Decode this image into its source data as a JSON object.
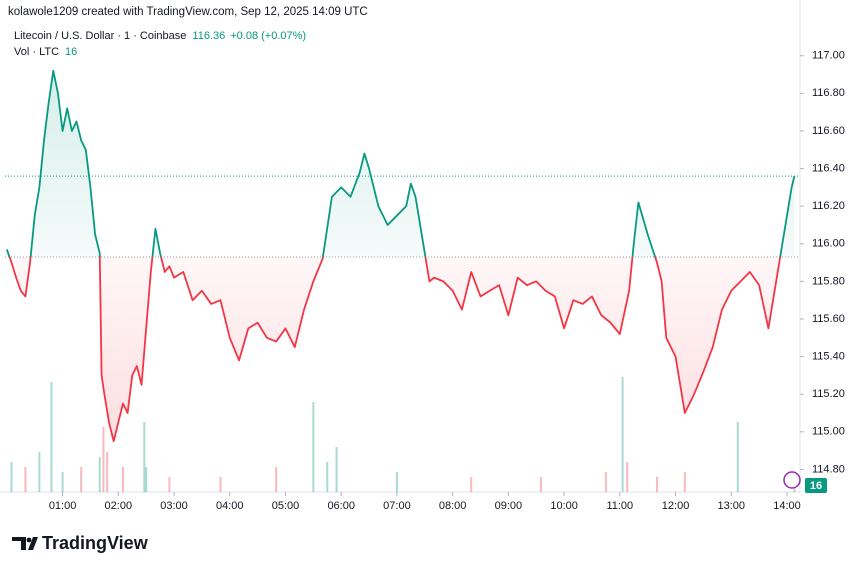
{
  "header": "kolawole1209 created with TradingView.com, Sep 12, 2025 14:09 UTC",
  "footer_brand": "TradingView",
  "chart_data": {
    "type": "line",
    "symbol": "Litecoin / U.S. Dollar · 1 · Coinbase",
    "last_price": "116.36",
    "change": "+0.08 (+0.07%)",
    "volume_label": "Vol · LTC",
    "volume_last": "16",
    "baseline": 115.93,
    "color_up": "#089981",
    "color_down": "#f23645",
    "x": [
      0,
      5,
      10,
      15,
      20,
      25,
      30,
      35,
      40,
      45,
      50,
      55,
      60,
      65,
      70,
      75,
      80,
      85,
      90,
      95,
      100,
      102,
      105,
      110,
      115,
      120,
      125,
      130,
      135,
      140,
      145,
      150,
      155,
      160,
      165,
      170,
      175,
      180,
      190,
      200,
      210,
      220,
      230,
      240,
      250,
      260,
      270,
      280,
      290,
      300,
      310,
      320,
      330,
      340,
      350,
      360,
      370,
      380,
      385,
      390,
      400,
      410,
      420,
      430,
      435,
      440,
      450,
      455,
      460,
      470,
      480,
      490,
      500,
      510,
      520,
      530,
      540,
      550,
      560,
      570,
      580,
      590,
      600,
      610,
      620,
      630,
      640,
      650,
      660,
      670,
      675,
      680,
      690,
      700,
      705,
      710,
      720,
      730,
      740,
      750,
      760,
      770,
      780,
      790,
      800,
      810,
      820,
      825,
      830,
      835,
      840,
      845,
      848
    ],
    "values": [
      115.97,
      115.9,
      115.82,
      115.75,
      115.72,
      115.9,
      116.15,
      116.3,
      116.55,
      116.75,
      116.92,
      116.8,
      116.6,
      116.72,
      116.6,
      116.65,
      116.55,
      116.5,
      116.3,
      116.05,
      115.95,
      115.3,
      115.2,
      115.05,
      114.95,
      115.05,
      115.15,
      115.1,
      115.3,
      115.35,
      115.25,
      115.55,
      115.85,
      116.08,
      115.95,
      115.85,
      115.88,
      115.82,
      115.85,
      115.7,
      115.75,
      115.68,
      115.7,
      115.5,
      115.38,
      115.55,
      115.58,
      115.5,
      115.48,
      115.55,
      115.45,
      115.65,
      115.8,
      115.92,
      116.25,
      116.3,
      116.25,
      116.38,
      116.48,
      116.4,
      116.2,
      116.1,
      116.15,
      116.2,
      116.32,
      116.25,
      115.95,
      115.8,
      115.82,
      115.8,
      115.75,
      115.65,
      115.85,
      115.72,
      115.75,
      115.78,
      115.62,
      115.82,
      115.78,
      115.8,
      115.75,
      115.72,
      115.55,
      115.7,
      115.68,
      115.72,
      115.62,
      115.58,
      115.52,
      115.75,
      116.0,
      116.22,
      116.05,
      115.9,
      115.8,
      115.5,
      115.4,
      115.1,
      115.2,
      115.32,
      115.45,
      115.65,
      115.75,
      115.8,
      115.85,
      115.78,
      115.55,
      115.7,
      115.85,
      116.0,
      116.15,
      116.3,
      116.36
    ],
    "volume": {
      "x": [
        5,
        20,
        35,
        48,
        60,
        80,
        100,
        104,
        108,
        125,
        148,
        150,
        175,
        230,
        290,
        330,
        345,
        355,
        420,
        500,
        575,
        645,
        663,
        668,
        700,
        730,
        787,
        848
      ],
      "values": [
        30,
        25,
        40,
        110,
        20,
        25,
        35,
        65,
        40,
        25,
        70,
        25,
        15,
        15,
        25,
        90,
        30,
        45,
        20,
        15,
        15,
        20,
        115,
        30,
        15,
        20,
        70,
        16
      ],
      "colors": [
        "#089981",
        "#f23645",
        "#089981",
        "#089981",
        "#089981",
        "#f23645",
        "#089981",
        "#f23645",
        "#f23645",
        "#f23645",
        "#089981",
        "#089981",
        "#f23645",
        "#f23645",
        "#f23645",
        "#089981",
        "#089981",
        "#089981",
        "#089981",
        "#f23645",
        "#f23645",
        "#f23645",
        "#089981",
        "#f23645",
        "#f23645",
        "#f23645",
        "#089981",
        "#089981"
      ],
      "lim": [
        0,
        120
      ]
    },
    "xlim": [
      -2,
      854
    ],
    "ylim": [
      114.68,
      117.19
    ],
    "xticks": [
      {
        "value": 60,
        "label": "01:00"
      },
      {
        "value": 120,
        "label": "02:00"
      },
      {
        "value": 180,
        "label": "03:00"
      },
      {
        "value": 240,
        "label": "04:00"
      },
      {
        "value": 300,
        "label": "05:00"
      },
      {
        "value": 360,
        "label": "06:00"
      },
      {
        "value": 420,
        "label": "07:00"
      },
      {
        "value": 480,
        "label": "08:00"
      },
      {
        "value": 540,
        "label": "09:00"
      },
      {
        "value": 600,
        "label": "10:00"
      },
      {
        "value": 660,
        "label": "11:00"
      },
      {
        "value": 720,
        "label": "12:00"
      },
      {
        "value": 780,
        "label": "13:00"
      },
      {
        "value": 840,
        "label": "14:00"
      }
    ],
    "yticks": [
      {
        "value": 114.8,
        "label": "114.80"
      },
      {
        "value": 115,
        "label": "115.00"
      },
      {
        "value": 115.2,
        "label": "115.20"
      },
      {
        "value": 115.4,
        "label": "115.40"
      },
      {
        "value": 115.6,
        "label": "115.60"
      },
      {
        "value": 115.8,
        "label": "115.80"
      },
      {
        "value": 116,
        "label": "116.00"
      },
      {
        "value": 116.2,
        "label": "116.20"
      },
      {
        "value": 116.4,
        "label": "116.40"
      },
      {
        "value": 116.6,
        "label": "116.60"
      },
      {
        "value": 116.8,
        "label": "116.80"
      },
      {
        "value": 117,
        "label": "117.00"
      }
    ]
  }
}
